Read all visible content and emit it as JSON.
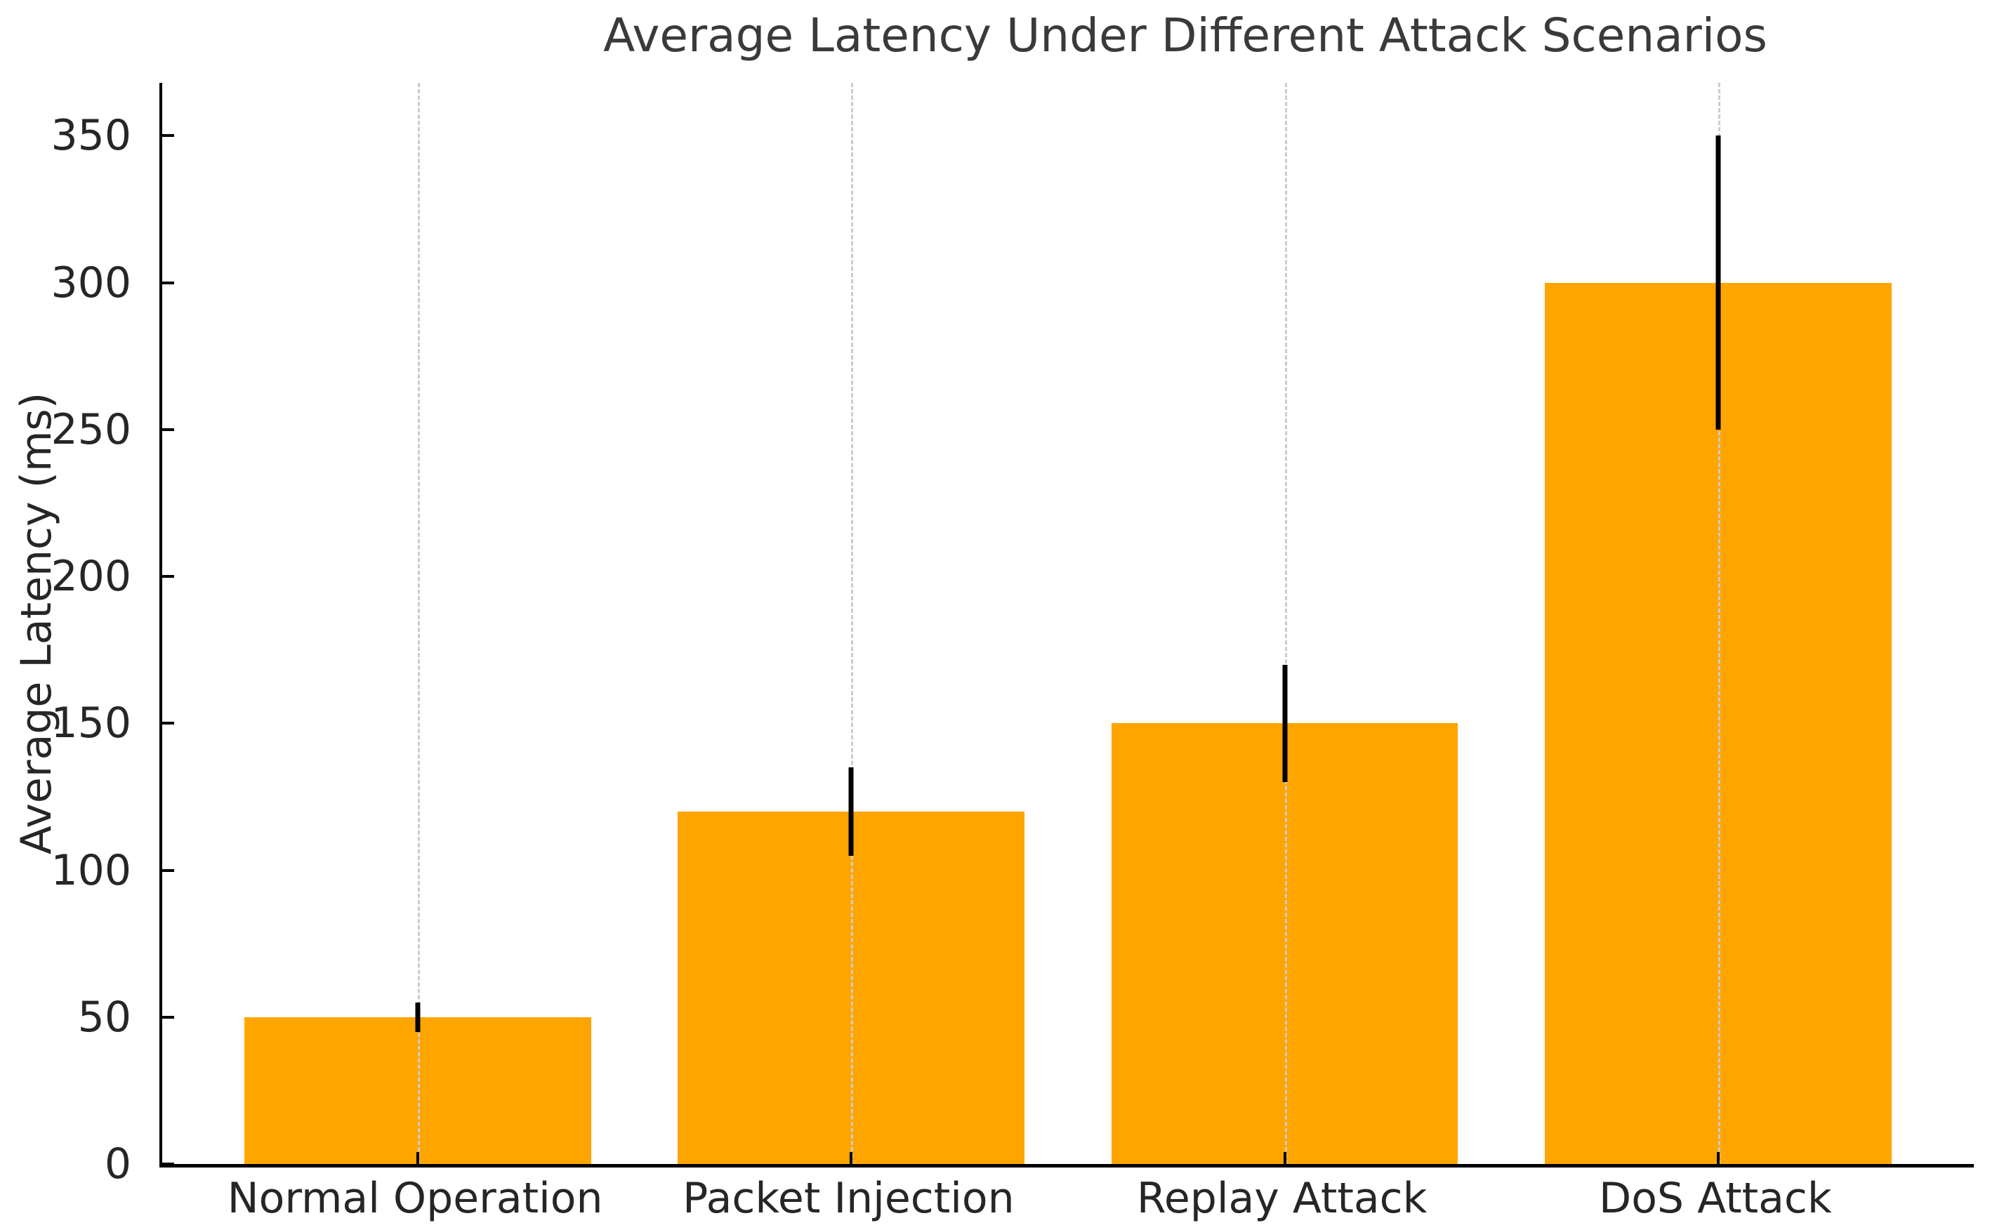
{
  "chart_data": {
    "type": "bar",
    "title": "Average Latency Under Different Attack Scenarios",
    "xlabel": "",
    "ylabel": "Average Latency (ms)",
    "categories": [
      "Normal Operation",
      "Packet Injection",
      "Replay Attack",
      "DoS Attack"
    ],
    "values": [
      50,
      120,
      150,
      300
    ],
    "error_bars": [
      5,
      15,
      20,
      50
    ],
    "yticks": [
      0,
      50,
      100,
      150,
      200,
      250,
      300,
      350
    ],
    "ylim": [
      0,
      368
    ],
    "bar_color": "#FFA500",
    "error_bar_color": "#000000",
    "gridline_color": "#cccccc",
    "axis_color": "#000000",
    "text_color": "#262626",
    "title_color": "#3a3a3a",
    "grid": "vertical-dashed",
    "legend": null
  }
}
